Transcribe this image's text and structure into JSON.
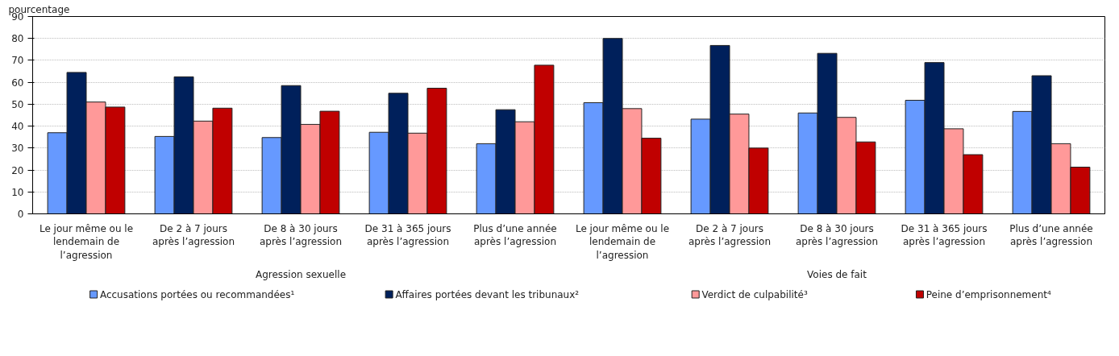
{
  "chart_data": {
    "type": "bar",
    "ylabel": "pourcentage",
    "categories": [
      "Le jour même ou le lendemain de l’agression",
      "De 2 à 7 jours après l’agression",
      "De 8 à 30 jours après l’agression",
      "De 31 à 365 jours après l’agression",
      "Plus d’une année après l’agression",
      "Le jour même ou le lendemain de l’agression",
      "De 2 à 7 jours après l’agression",
      "De 8 à 30 jours après l’agression",
      "De 31 à 365 jours après l’agression",
      "Plus d’une année après l’agression"
    ],
    "annotations": [
      "Agression sexuelle",
      "Voies de fait"
    ],
    "series": [
      {
        "name": "Accusations portées ou recommandées¹",
        "color": "#6699ff",
        "values": [
          37,
          35.3,
          34.8,
          37.2,
          32,
          50.7,
          43.2,
          46,
          51.8,
          46.7
        ]
      },
      {
        "name": "Affaires portées devant les tribunaux²",
        "color": "#00205b",
        "values": [
          64.5,
          62.5,
          58.5,
          55,
          47.5,
          80,
          76.8,
          73.2,
          69,
          63
        ]
      },
      {
        "name": "Verdict de culpabilité³",
        "color": "#ff9999",
        "values": [
          51,
          42.3,
          40.8,
          36.8,
          42,
          48,
          45.5,
          44,
          38.8,
          32
        ]
      },
      {
        "name": "Peine d’emprisonnement⁴",
        "color": "#c00000",
        "values": [
          48.7,
          48.2,
          46.8,
          57.3,
          67.8,
          34.5,
          30,
          32.8,
          27,
          21.3
        ]
      }
    ],
    "ylim": [
      0,
      90
    ],
    "yticks": [
      0,
      10,
      20,
      30,
      40,
      50,
      60,
      70,
      80,
      90
    ],
    "grid": "y",
    "legend": "bottom"
  }
}
